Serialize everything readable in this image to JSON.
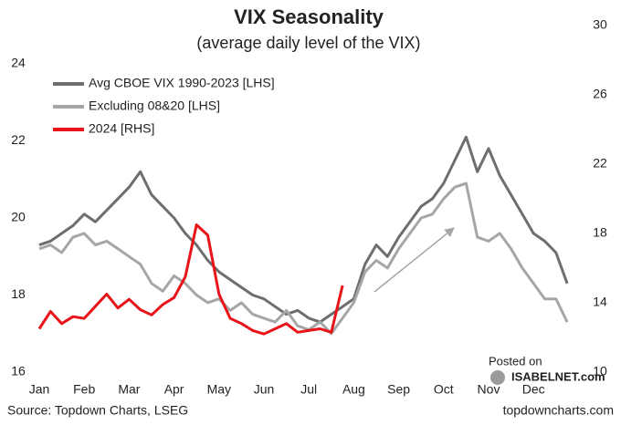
{
  "chart_data": {
    "type": "line",
    "title": "VIX Seasonality",
    "subtitle": "(average daily level of the VIX)",
    "source": "Source: Topdown Charts, LSEG",
    "watermark": [
      "Posted on",
      "ISABELNET.com"
    ],
    "footer": "topdowncharts.com",
    "categories": [
      "Jan",
      null,
      null,
      null,
      "Feb",
      null,
      null,
      null,
      "Mar",
      null,
      null,
      null,
      "Apr",
      null,
      null,
      null,
      "May",
      null,
      null,
      null,
      "Jun",
      null,
      null,
      null,
      "Jul",
      null,
      null,
      null,
      "Aug",
      null,
      null,
      null,
      "Sep",
      null,
      null,
      null,
      "Oct",
      null,
      null,
      null,
      "Nov",
      null,
      null,
      null,
      "Dec",
      null,
      null,
      null
    ],
    "ylim": [
      16,
      24
    ],
    "yticks": [
      16,
      18,
      20,
      22,
      24
    ],
    "y2lim": [
      10,
      30
    ],
    "y2ticks": [
      10,
      14,
      18,
      22,
      26,
      30
    ],
    "legend": "top-left",
    "series": [
      {
        "name": "Avg CBOE VIX 1990-2023 [LHS]",
        "color": "#6e6e6e",
        "values": [
          19.3,
          19.4,
          19.6,
          19.8,
          20.1,
          19.9,
          20.2,
          20.5,
          20.8,
          21.2,
          20.6,
          20.3,
          20.0,
          19.6,
          19.3,
          18.9,
          18.6,
          18.4,
          18.2,
          18.0,
          17.9,
          17.7,
          17.5,
          17.6,
          17.4,
          17.3,
          17.5,
          17.7,
          17.9,
          18.8,
          19.3,
          19.0,
          19.5,
          19.9,
          20.3,
          20.5,
          20.9,
          21.5,
          22.1,
          21.2,
          21.8,
          21.1,
          20.6,
          20.1,
          19.6,
          19.4,
          19.1,
          18.3
        ]
      },
      {
        "name": "Excluding 08&20 [LHS]",
        "color": "#a6a6a6",
        "values": [
          19.2,
          19.3,
          19.1,
          19.5,
          19.6,
          19.3,
          19.4,
          19.2,
          19.0,
          18.8,
          18.3,
          18.1,
          18.5,
          18.3,
          18.0,
          17.8,
          17.9,
          17.6,
          17.8,
          17.5,
          17.4,
          17.3,
          17.6,
          17.2,
          17.1,
          17.3,
          17.0,
          17.4,
          17.8,
          18.6,
          18.9,
          18.7,
          19.2,
          19.6,
          20.0,
          20.1,
          20.5,
          20.8,
          20.9,
          19.5,
          19.4,
          19.6,
          19.2,
          18.7,
          18.3,
          17.9,
          17.9,
          17.3
        ]
      },
      {
        "name": "2024 [RHS]",
        "color": "#e8141a",
        "axis": "y2",
        "values": [
          12.5,
          13.5,
          12.8,
          13.2,
          13.1,
          13.8,
          14.5,
          13.7,
          14.2,
          13.6,
          13.3,
          13.9,
          14.3,
          15.5,
          18.5,
          17.9,
          14.5,
          13.1,
          12.8,
          12.4,
          12.2,
          12.5,
          12.8,
          12.3,
          12.4,
          12.5,
          12.3,
          15.0,
          null,
          null,
          null,
          null,
          null,
          null,
          null,
          null,
          null,
          null,
          null,
          null,
          null,
          null,
          null,
          null,
          null,
          null,
          null,
          null
        ]
      }
    ]
  }
}
